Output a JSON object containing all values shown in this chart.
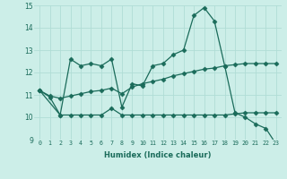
{
  "xlabel": "Humidex (Indice chaleur)",
  "bg_color": "#cceee8",
  "grid_color": "#b0ddd5",
  "line_color": "#1a6b5a",
  "xlim": [
    -0.5,
    23.5
  ],
  "ylim": [
    9,
    15
  ],
  "yticks": [
    9,
    10,
    11,
    12,
    13,
    14,
    15
  ],
  "xticks": [
    0,
    1,
    2,
    3,
    4,
    5,
    6,
    7,
    8,
    9,
    10,
    11,
    12,
    13,
    14,
    15,
    16,
    17,
    18,
    19,
    20,
    21,
    22,
    23
  ],
  "line1_x": [
    0,
    1,
    2,
    3,
    4,
    5,
    6,
    7,
    8,
    9,
    10,
    11,
    12,
    13,
    14,
    15,
    16,
    17,
    18,
    19,
    20,
    21,
    22,
    23
  ],
  "line1_y": [
    11.2,
    10.9,
    10.1,
    12.6,
    12.3,
    12.4,
    12.3,
    12.6,
    10.45,
    11.5,
    11.4,
    12.3,
    12.4,
    12.8,
    13.0,
    14.55,
    14.9,
    14.3,
    12.3,
    10.2,
    10.0,
    9.7,
    9.5,
    8.8
  ],
  "line2_x": [
    0,
    2,
    3,
    4,
    5,
    6,
    7,
    8,
    9,
    10,
    11,
    12,
    13,
    14,
    15,
    16,
    17,
    18,
    19,
    20,
    21,
    22,
    23
  ],
  "line2_y": [
    11.2,
    10.1,
    10.1,
    10.1,
    10.1,
    10.1,
    10.4,
    10.1,
    10.1,
    10.1,
    10.1,
    10.1,
    10.1,
    10.1,
    10.1,
    10.1,
    10.1,
    10.1,
    10.15,
    10.2,
    10.2,
    10.2,
    10.2
  ],
  "line3_x": [
    0,
    1,
    2,
    3,
    4,
    5,
    6,
    7,
    8,
    9,
    10,
    11,
    12,
    13,
    14,
    15,
    16,
    17,
    18,
    19,
    20,
    21,
    22,
    23
  ],
  "line3_y": [
    11.2,
    10.95,
    10.85,
    10.95,
    11.05,
    11.15,
    11.2,
    11.3,
    11.05,
    11.35,
    11.5,
    11.6,
    11.7,
    11.85,
    11.95,
    12.05,
    12.15,
    12.2,
    12.3,
    12.35,
    12.4,
    12.4,
    12.4,
    12.4
  ]
}
